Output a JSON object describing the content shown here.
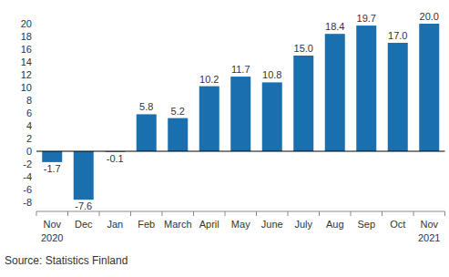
{
  "chart_data": {
    "type": "bar",
    "categories": [
      "Nov\n2020",
      "Dec",
      "Jan",
      "Feb",
      "March",
      "April",
      "May",
      "June",
      "July",
      "Aug",
      "Sep",
      "Oct",
      "Nov\n2021"
    ],
    "values": [
      -1.7,
      -7.6,
      -0.1,
      5.8,
      5.2,
      10.2,
      11.7,
      10.8,
      15.0,
      18.4,
      19.7,
      17.0,
      20.0
    ],
    "value_labels": [
      "-1.7",
      "-7.6",
      "-0.1",
      "5.8",
      "5.2",
      "10.2",
      "11.7",
      "10.8",
      "15.0",
      "18.4",
      "19.7",
      "17.0",
      "20.0"
    ],
    "color": "#1a6fae",
    "ylim": [
      -8,
      20
    ],
    "yticks": [
      -8,
      -6,
      -4,
      -2,
      0,
      2,
      4,
      6,
      8,
      10,
      12,
      14,
      16,
      18,
      20
    ],
    "grid": false,
    "data_labels": true,
    "source": "Source: Statistics Finland"
  }
}
